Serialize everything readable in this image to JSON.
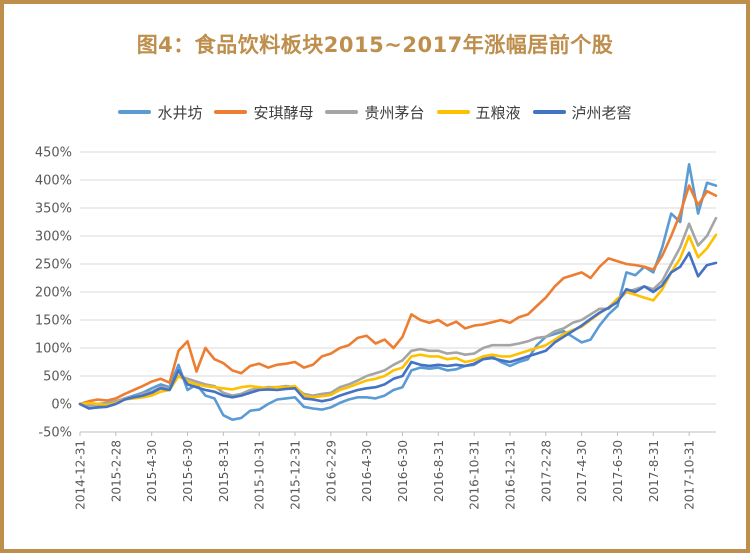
{
  "page": {
    "border_color": "#BE8E4C",
    "title_color": "#BE8E4C",
    "background": "#FFFFFF",
    "axis_text_color": "#595959",
    "gridline_color": "#D9D9D9",
    "axis_line_color": "#BFBFBF",
    "legend_text_color": "#404040"
  },
  "chart_data": {
    "type": "line",
    "title": "图4：食品饮料板块2015~2017年涨幅居前个股",
    "xlabel": "",
    "ylabel": "",
    "ylim": [
      -50,
      450
    ],
    "ytick_step": 50,
    "ytick_labels": [
      "450%",
      "400%",
      "350%",
      "300%",
      "250%",
      "200%",
      "150%",
      "100%",
      "50%",
      "0%",
      "-50%"
    ],
    "grid": true,
    "legend_position": "top",
    "ticks_every_n_points": 4,
    "x_tick_labels": [
      "2014-12-31",
      "2015-2-28",
      "2015-4-30",
      "2015-6-30",
      "2015-8-31",
      "2015-10-31",
      "2015-12-31",
      "2016-2-29",
      "2016-4-30",
      "2016-6-30",
      "2016-8-31",
      "2016-10-31",
      "2016-12-31",
      "2017-2-28",
      "2017-4-30",
      "2017-6-30",
      "2017-8-31",
      "2017-10-31"
    ],
    "unit": "percent cumulative gain",
    "series": [
      {
        "name": "水井坊",
        "key": "shuijingfang",
        "color": "#5B9BD5",
        "values": [
          0,
          -8,
          -5,
          -2,
          3,
          10,
          15,
          20,
          28,
          35,
          30,
          70,
          25,
          35,
          15,
          10,
          -20,
          -28,
          -25,
          -12,
          -10,
          0,
          8,
          10,
          12,
          -5,
          -8,
          -10,
          -6,
          2,
          8,
          12,
          12,
          10,
          15,
          25,
          30,
          60,
          65,
          63,
          65,
          60,
          62,
          68,
          70,
          80,
          85,
          75,
          68,
          75,
          80,
          105,
          120,
          125,
          130,
          120,
          110,
          115,
          140,
          160,
          175,
          235,
          230,
          245,
          235,
          280,
          340,
          325,
          428,
          340,
          395,
          390
        ]
      },
      {
        "name": "安琪酵母",
        "key": "angel-yeast",
        "color": "#ED7D31",
        "values": [
          0,
          5,
          8,
          6,
          10,
          18,
          25,
          32,
          40,
          45,
          38,
          95,
          112,
          58,
          100,
          80,
          73,
          60,
          55,
          68,
          72,
          65,
          70,
          72,
          75,
          65,
          70,
          85,
          90,
          100,
          105,
          118,
          122,
          108,
          115,
          100,
          120,
          160,
          150,
          145,
          150,
          140,
          147,
          135,
          140,
          142,
          146,
          150,
          145,
          155,
          160,
          175,
          190,
          210,
          225,
          230,
          235,
          225,
          245,
          260,
          255,
          250,
          248,
          245,
          240,
          265,
          300,
          340,
          390,
          355,
          380,
          372
        ]
      },
      {
        "name": "贵州茅台",
        "key": "guizhou-moutai",
        "color": "#A5A5A5",
        "values": [
          0,
          -3,
          0,
          2,
          5,
          10,
          12,
          18,
          22,
          30,
          28,
          50,
          45,
          40,
          35,
          32,
          20,
          15,
          18,
          25,
          28,
          30,
          30,
          32,
          30,
          18,
          15,
          18,
          20,
          30,
          35,
          42,
          50,
          55,
          60,
          70,
          78,
          95,
          98,
          95,
          95,
          90,
          92,
          88,
          90,
          100,
          105,
          105,
          105,
          108,
          112,
          118,
          120,
          130,
          135,
          145,
          150,
          160,
          170,
          170,
          185,
          200,
          205,
          210,
          205,
          220,
          250,
          280,
          322,
          283,
          300,
          332
        ]
      },
      {
        "name": "五粮液",
        "key": "wuliangye",
        "color": "#FFC000",
        "values": [
          0,
          2,
          0,
          -2,
          2,
          8,
          10,
          12,
          15,
          22,
          25,
          50,
          40,
          35,
          32,
          30,
          28,
          26,
          30,
          32,
          30,
          28,
          30,
          30,
          32,
          15,
          12,
          14,
          16,
          25,
          30,
          36,
          42,
          45,
          50,
          60,
          65,
          85,
          88,
          85,
          85,
          80,
          82,
          75,
          78,
          85,
          88,
          85,
          85,
          90,
          95,
          100,
          105,
          115,
          125,
          132,
          138,
          150,
          162,
          172,
          188,
          200,
          195,
          190,
          185,
          205,
          235,
          260,
          300,
          262,
          278,
          302
        ]
      },
      {
        "name": "泸州老窖",
        "key": "luzhou-laojiao",
        "color": "#4472C4",
        "values": [
          0,
          -8,
          -6,
          -5,
          0,
          8,
          12,
          15,
          20,
          28,
          25,
          60,
          35,
          30,
          25,
          22,
          15,
          12,
          15,
          20,
          25,
          26,
          25,
          27,
          28,
          10,
          8,
          5,
          8,
          15,
          20,
          25,
          28,
          30,
          35,
          45,
          50,
          75,
          70,
          68,
          70,
          68,
          70,
          68,
          72,
          80,
          82,
          78,
          75,
          80,
          85,
          90,
          95,
          110,
          120,
          130,
          140,
          152,
          163,
          172,
          182,
          205,
          200,
          210,
          200,
          212,
          235,
          245,
          270,
          228,
          248,
          252
        ]
      }
    ]
  }
}
